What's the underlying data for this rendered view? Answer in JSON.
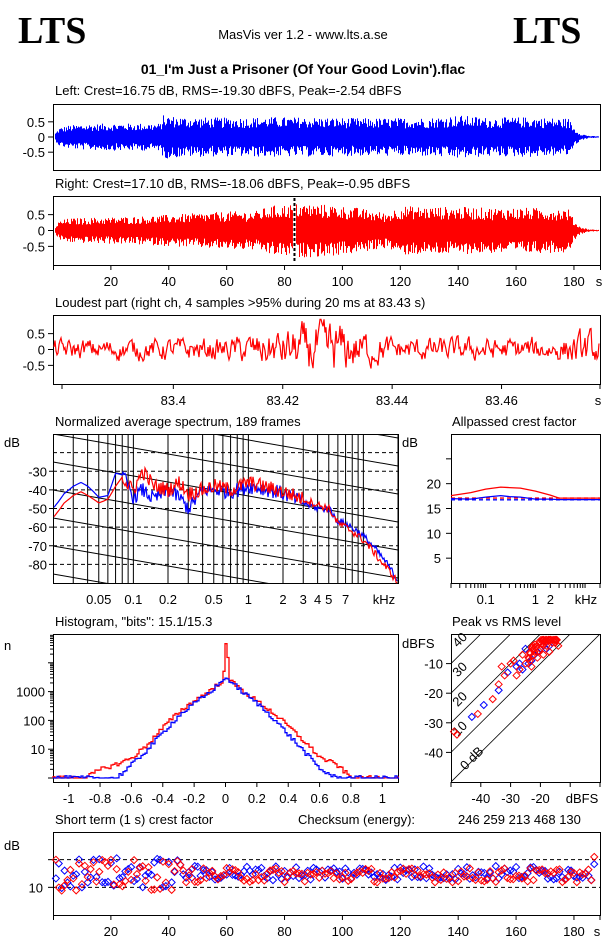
{
  "header": {
    "logo_left": "LTS",
    "logo_right": "LTS",
    "app_title": "MasVis ver 1.2 - www.lts.a.se",
    "file_name": "01_I'm Just a Prisoner (Of Your Good Lovin').flac"
  },
  "colors": {
    "left": "#0000ff",
    "right": "#ff0000",
    "axis": "#000000"
  },
  "chart_data": [
    {
      "id": "left_waveform",
      "type": "area",
      "title": "Left: Crest=16.75 dB, RMS=-19.30 dBFS, Peak=-2.54 dBFS",
      "stats": {
        "crest_db": 16.75,
        "rms_dbfs": -19.3,
        "peak_dbfs": -2.54
      },
      "ylim": [
        -1,
        1
      ],
      "yticks": [
        "0.5",
        "0",
        "-0.5"
      ],
      "xlim": [
        0,
        189
      ],
      "envelope": {
        "x": [
          0,
          2,
          5,
          10,
          20,
          30,
          37,
          38,
          45,
          60,
          75,
          90,
          110,
          130,
          140,
          150,
          165,
          175,
          178,
          180,
          182,
          185,
          189
        ],
        "amp": [
          0.05,
          0.3,
          0.38,
          0.42,
          0.45,
          0.45,
          0.45,
          0.72,
          0.66,
          0.64,
          0.66,
          0.65,
          0.62,
          0.64,
          0.72,
          0.64,
          0.66,
          0.62,
          0.62,
          0.3,
          0.12,
          0.04,
          0.02
        ]
      }
    },
    {
      "id": "right_waveform",
      "type": "area",
      "title": "Right: Crest=17.10 dB, RMS=-18.06 dBFS, Peak=-0.95 dBFS",
      "stats": {
        "crest_db": 17.1,
        "rms_dbfs": -18.06,
        "peak_dbfs": -0.95
      },
      "ylim": [
        -1,
        1
      ],
      "yticks": [
        "0.5",
        "0",
        "-0.5"
      ],
      "xlim": [
        0,
        189
      ],
      "xticks": [
        "20",
        "40",
        "60",
        "80",
        "100",
        "120",
        "140",
        "160",
        "180"
      ],
      "xtick_values": [
        20,
        40,
        60,
        80,
        100,
        120,
        140,
        160,
        180
      ],
      "xunit": "s",
      "marker_time": 83.43,
      "envelope": {
        "x": [
          0,
          2,
          5,
          10,
          20,
          30,
          37,
          40,
          50,
          60,
          70,
          75,
          83,
          86,
          95,
          105,
          115,
          120,
          130,
          140,
          150,
          165,
          175,
          178,
          180,
          182,
          185,
          189
        ],
        "amp": [
          0.05,
          0.3,
          0.38,
          0.4,
          0.42,
          0.45,
          0.48,
          0.5,
          0.55,
          0.6,
          0.62,
          0.78,
          0.85,
          0.85,
          0.82,
          0.72,
          0.55,
          0.78,
          0.75,
          0.75,
          0.72,
          0.72,
          0.7,
          0.68,
          0.3,
          0.12,
          0.04,
          0.02
        ]
      }
    },
    {
      "id": "loudest_part",
      "type": "line",
      "title": "Loudest part (right ch, 4 samples >95% during 20 ms at 83.43 s)",
      "ylim": [
        -1,
        1
      ],
      "yticks": [
        "0.5",
        "0",
        "-0.5"
      ],
      "xlim": [
        83.378,
        83.478
      ],
      "xticks": [
        "83.4",
        "83.42",
        "83.44",
        "83.46"
      ],
      "xtick_values": [
        83.4,
        83.42,
        83.44,
        83.46
      ],
      "xunit": "s",
      "amplitude_profile": {
        "t": [
          83.378,
          83.41,
          83.42,
          83.428,
          83.432,
          83.44,
          83.47,
          83.476,
          83.478
        ],
        "amp": [
          0.3,
          0.35,
          0.6,
          0.9,
          0.7,
          0.35,
          0.35,
          0.55,
          0.4
        ]
      }
    },
    {
      "id": "spectrum",
      "type": "line",
      "title": "Normalized average spectrum, 189 frames",
      "ylabel": "dB",
      "xunit": "kHz",
      "xscale": "log",
      "xlim": [
        0.02,
        20
      ],
      "ylim": [
        -90,
        -10
      ],
      "yticks": [
        "-30",
        "-40",
        "-50",
        "-60",
        "-70",
        "-80"
      ],
      "ytick_values": [
        -30,
        -40,
        -50,
        -60,
        -70,
        -80
      ],
      "xticks": [
        "0.05",
        "0.1",
        "0.2",
        "0.5",
        "1",
        "2",
        "3",
        "4",
        "5",
        "7"
      ],
      "xtick_values": [
        0.05,
        0.1,
        0.2,
        0.5,
        1,
        2,
        3,
        4,
        5,
        7
      ],
      "series": [
        {
          "name": "left",
          "color": "#0000ff",
          "x": [
            0.02,
            0.025,
            0.03,
            0.035,
            0.04,
            0.05,
            0.06,
            0.07,
            0.08,
            0.09,
            0.1,
            0.12,
            0.15,
            0.2,
            0.25,
            0.3,
            0.4,
            0.5,
            0.7,
            1,
            1.5,
            2,
            3,
            4,
            5,
            6,
            7,
            10,
            14,
            20
          ],
          "y": [
            -50,
            -42,
            -38,
            -36,
            -38,
            -44,
            -43,
            -31,
            -32,
            -38,
            -44,
            -40,
            -45,
            -40,
            -44,
            -50,
            -40,
            -40,
            -41,
            -38,
            -40,
            -42,
            -47,
            -50,
            -50,
            -57,
            -58,
            -65,
            -75,
            -89
          ]
        },
        {
          "name": "right",
          "color": "#ff0000",
          "x": [
            0.02,
            0.025,
            0.03,
            0.035,
            0.04,
            0.05,
            0.06,
            0.07,
            0.08,
            0.09,
            0.1,
            0.12,
            0.15,
            0.2,
            0.25,
            0.3,
            0.4,
            0.5,
            0.7,
            1,
            1.5,
            2,
            3,
            4,
            5,
            6,
            7,
            10,
            14,
            20
          ],
          "y": [
            -55,
            -47,
            -43,
            -41,
            -43,
            -47,
            -45,
            -38,
            -33,
            -38,
            -40,
            -30,
            -38,
            -40,
            -36,
            -42,
            -40,
            -38,
            -40,
            -36,
            -39,
            -41,
            -45,
            -48,
            -50,
            -58,
            -60,
            -67,
            -78,
            -90
          ]
        }
      ],
      "slope_lines": "diagonal reference lines",
      "grid": true
    },
    {
      "id": "allpassed_crest",
      "type": "line",
      "title": "Allpassed crest factor",
      "ylabel": "dB",
      "xunit": "kHz",
      "xscale": "log",
      "xlim": [
        0.02,
        20
      ],
      "ylim": [
        0,
        30
      ],
      "yticks": [
        "20",
        "15",
        "10",
        "5"
      ],
      "ytick_values": [
        20,
        15,
        10,
        5
      ],
      "xticks": [
        "0.1",
        "1",
        "2"
      ],
      "xtick_values": [
        0.1,
        1,
        2
      ],
      "series": [
        {
          "name": "right",
          "color": "#ff0000",
          "x": [
            0.02,
            0.05,
            0.1,
            0.2,
            0.3,
            0.5,
            1,
            2,
            3,
            5,
            20
          ],
          "y": [
            17.6,
            18.2,
            18.9,
            19.3,
            19.2,
            19.1,
            18.5,
            17.7,
            17.1,
            17.1,
            17.1
          ]
        },
        {
          "name": "left",
          "color": "#0000ff",
          "x": [
            0.02,
            0.05,
            0.1,
            0.2,
            0.3,
            0.5,
            1,
            2,
            3,
            5,
            20
          ],
          "y": [
            17.0,
            16.9,
            17.3,
            17.6,
            17.4,
            17.3,
            16.9,
            16.9,
            16.8,
            16.8,
            16.8
          ]
        }
      ],
      "reference_lines": [
        {
          "name": "right overall crest",
          "color": "#ff0000",
          "value": 17.1,
          "style": "dashed"
        },
        {
          "name": "left overall crest",
          "color": "#0000ff",
          "value": 16.75,
          "style": "dashed"
        }
      ]
    },
    {
      "id": "histogram",
      "type": "line",
      "title": "Histogram, \"bits\": 15.1/15.3",
      "ylabel": "n",
      "yscale": "log",
      "ylim": [
        1,
        100000
      ],
      "yticks": [
        "1000",
        "100",
        "10"
      ],
      "ytick_values": [
        1000,
        100,
        10
      ],
      "xlim": [
        -1.1,
        1.1
      ],
      "xticks": [
        "-1",
        "-0.8",
        "-0.6",
        "-0.4",
        "-0.2",
        "0",
        "0.2",
        "0.4",
        "0.6",
        "0.8",
        "1"
      ],
      "xtick_values": [
        -1,
        -0.8,
        -0.6,
        -0.4,
        -0.2,
        0,
        0.2,
        0.4,
        0.6,
        0.8,
        1
      ],
      "series": [
        {
          "name": "left",
          "color": "#0000ff",
          "x": [
            -0.7,
            -0.6,
            -0.5,
            -0.4,
            -0.3,
            -0.2,
            -0.1,
            -0.02,
            0,
            0.02,
            0.1,
            0.2,
            0.3,
            0.4,
            0.5,
            0.6,
            0.7
          ],
          "y": [
            1,
            3,
            10,
            40,
            150,
            400,
            1000,
            2500,
            3000,
            2500,
            1000,
            380,
            120,
            30,
            8,
            2,
            1
          ]
        },
        {
          "name": "right",
          "color": "#ff0000",
          "x": [
            -0.9,
            -0.8,
            -0.7,
            -0.6,
            -0.5,
            -0.4,
            -0.3,
            -0.2,
            -0.1,
            -0.02,
            0,
            0.02,
            0.1,
            0.2,
            0.3,
            0.4,
            0.5,
            0.6,
            0.7,
            0.8,
            0.9
          ],
          "y": [
            1,
            2,
            3,
            5,
            15,
            60,
            200,
            500,
            1100,
            2500,
            80000,
            2500,
            1100,
            450,
            180,
            60,
            18,
            5,
            3,
            1,
            1
          ]
        }
      ]
    },
    {
      "id": "peak_vs_rms",
      "type": "scatter",
      "title": "Peak vs RMS level",
      "ylabel": "dBFS",
      "xlabel": "dBFS",
      "xlim": [
        -50,
        0
      ],
      "ylim": [
        -50,
        0
      ],
      "xticks": [
        "-40",
        "-30",
        "-20"
      ],
      "xtick_values": [
        -40,
        -30,
        -20
      ],
      "yticks": [
        "-10",
        "-20",
        "-30",
        "-40"
      ],
      "ytick_values": [
        -10,
        -20,
        -30,
        -40
      ],
      "crest_lines": [
        "0 dB",
        "10",
        "20",
        "30",
        "40"
      ],
      "crest_line_values": [
        0,
        10,
        20,
        30,
        40
      ],
      "series": [
        {
          "name": "left",
          "color": "#0000ff",
          "x": [
            -43,
            -39,
            -34,
            -31,
            -28,
            -27,
            -26,
            -25,
            -24,
            -23,
            -22,
            -21,
            -20,
            -19,
            -18,
            -17
          ],
          "y": [
            -28,
            -24,
            -19,
            -13,
            -11,
            -10,
            -12,
            -5,
            -10,
            -9,
            -7,
            -6,
            -5,
            -4,
            -5,
            -4
          ]
        },
        {
          "name": "right",
          "color": "#ff0000",
          "x": [
            -49,
            -48,
            -41,
            -36,
            -34,
            -33,
            -32,
            -30,
            -29,
            -28,
            -27,
            -26,
            -25,
            -24,
            -23,
            -22,
            -21,
            -20,
            -19,
            -18,
            -17,
            -16,
            -15,
            -14
          ],
          "y": [
            -33,
            -34,
            -27,
            -22,
            -17,
            -11,
            -14,
            -10,
            -9,
            -14,
            -12,
            -7,
            -10,
            -8,
            -11,
            -6,
            -8,
            -5,
            -7,
            -4,
            -6,
            -3,
            -3,
            -4
          ]
        }
      ]
    },
    {
      "id": "short_term_crest",
      "type": "scatter",
      "title": "Short term (1 s) crest factor",
      "ylabel": "dB",
      "xlim": [
        0,
        189
      ],
      "ylim": [
        5,
        20
      ],
      "yticks": [
        "10"
      ],
      "ytick_values": [
        10
      ],
      "dashed_levels": [
        10,
        15
      ],
      "xticks": [
        "20",
        "40",
        "60",
        "80",
        "100",
        "120",
        "140",
        "160",
        "180"
      ],
      "xtick_values": [
        20,
        40,
        60,
        80,
        100,
        120,
        140,
        160,
        180
      ],
      "xunit": "s",
      "series": [
        {
          "name": "left",
          "color": "#0000ff",
          "y_profile": "approx 12.5 ± 2.5 dB, early values 11–15 dB, later 11.5–13.5 dB"
        },
        {
          "name": "right",
          "color": "#ff0000",
          "y_profile": "approx 12 ± 2.5 dB, early values 10–16 dB, later 11–13.5 dB"
        }
      ]
    }
  ],
  "checksum": {
    "label": "Checksum (energy):",
    "value": "246 259 213 468 130"
  }
}
